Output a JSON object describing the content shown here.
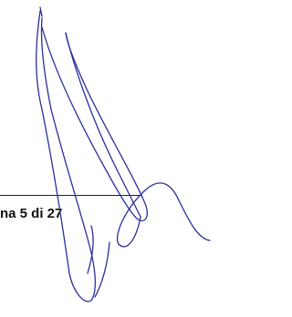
{
  "footer": {
    "page_label": "na 5 di 27"
  }
}
